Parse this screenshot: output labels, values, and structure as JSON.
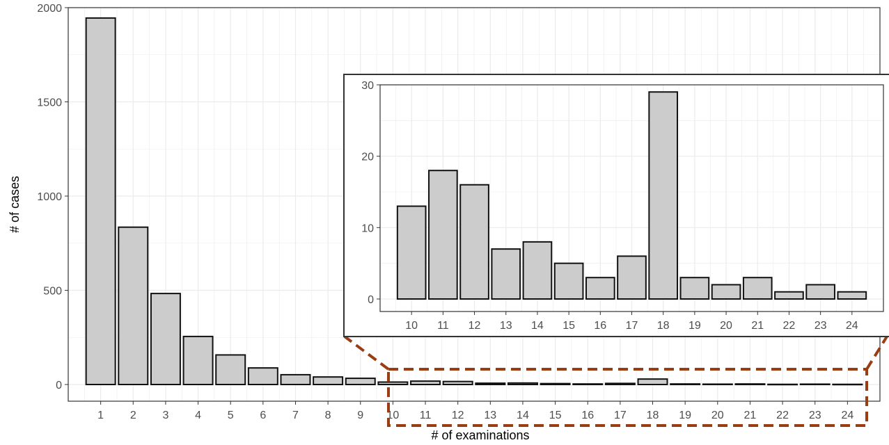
{
  "chart_data": [
    {
      "type": "bar",
      "role": "main",
      "xlabel": "# of examinations",
      "ylabel": "# of cases",
      "categories": [
        "1",
        "2",
        "3",
        "4",
        "5",
        "6",
        "7",
        "8",
        "9",
        "10",
        "11",
        "12",
        "13",
        "14",
        "15",
        "16",
        "17",
        "18",
        "19",
        "20",
        "21",
        "22",
        "23",
        "24"
      ],
      "values": [
        1945,
        835,
        483,
        255,
        157,
        88,
        52,
        40,
        33,
        13,
        18,
        16,
        7,
        8,
        5,
        3,
        6,
        29,
        3,
        2,
        3,
        1,
        2,
        1
      ],
      "ylim": [
        0,
        2000
      ],
      "yticks": [
        0,
        500,
        1000,
        1500,
        2000
      ],
      "grid": true
    },
    {
      "type": "bar",
      "role": "inset",
      "categories": [
        "10",
        "11",
        "12",
        "13",
        "14",
        "15",
        "16",
        "17",
        "18",
        "19",
        "20",
        "21",
        "22",
        "23",
        "24"
      ],
      "values": [
        13,
        18,
        16,
        7,
        8,
        5,
        3,
        6,
        29,
        3,
        2,
        3,
        1,
        2,
        1
      ],
      "ylim": [
        0,
        30
      ],
      "yticks": [
        0,
        10,
        20,
        30
      ],
      "grid": true
    }
  ],
  "colors": {
    "bar_fill": "#cccccc",
    "bar_stroke": "#111111",
    "zoom_box": "#9a3d12",
    "grid": "#ebebeb",
    "text": "#4d4d4d"
  }
}
